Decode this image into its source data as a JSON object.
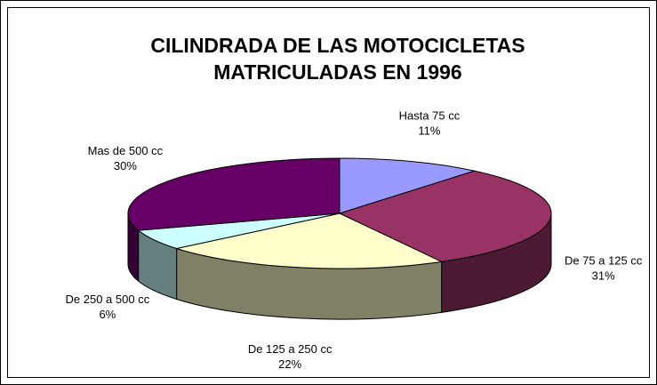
{
  "chart_data": {
    "type": "pie3d",
    "title": "CILINDRADA DE LAS MOTOCICLETAS MATRICULADAS EN 1996",
    "categories": [
      "Hasta 75 cc",
      "De 75 a 125 cc",
      "De 125 a 250 cc",
      "De 250 a 500 cc",
      "Mas de 500 cc"
    ],
    "values": [
      11,
      31,
      22,
      6,
      30
    ],
    "value_labels": [
      "11%",
      "31%",
      "22%",
      "6%",
      "30%"
    ],
    "colors": [
      "#9999ff",
      "#993366",
      "#ffffcc",
      "#ccffff",
      "#660066"
    ]
  }
}
